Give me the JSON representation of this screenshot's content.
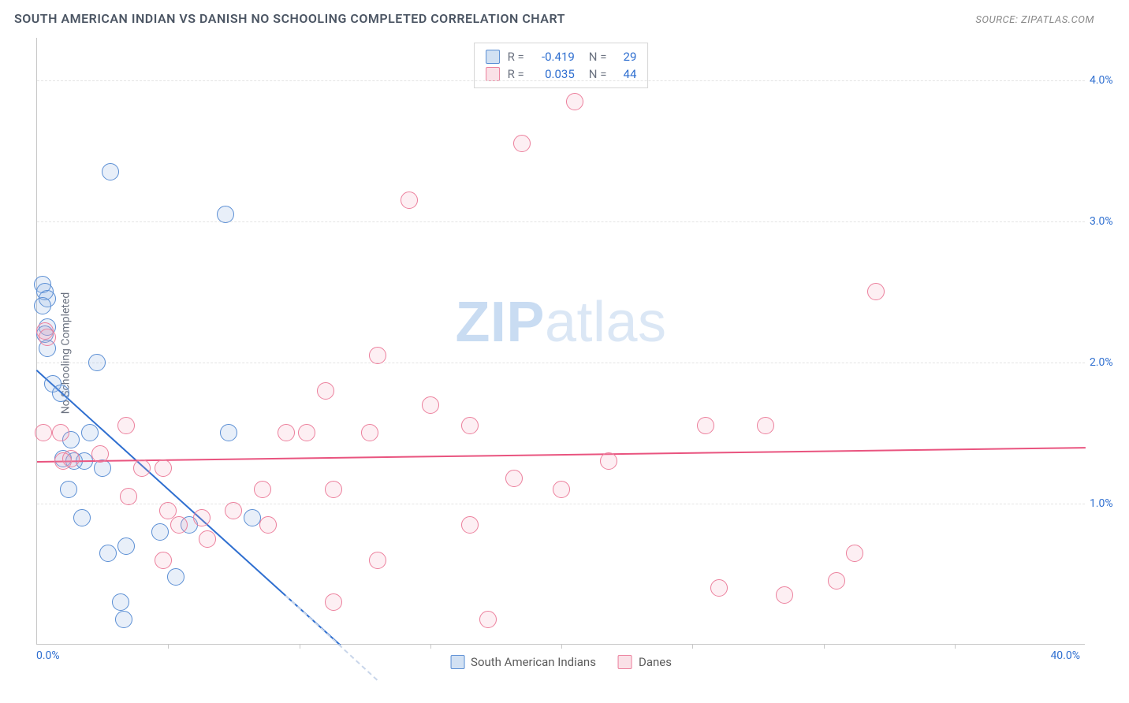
{
  "title": "SOUTH AMERICAN INDIAN VS DANISH NO SCHOOLING COMPLETED CORRELATION CHART",
  "source": "Source: ZipAtlas.com",
  "watermark_zip": "ZIP",
  "watermark_atlas": "atlas",
  "y_axis_title": "No Schooling Completed",
  "chart": {
    "type": "scatter",
    "xlim": [
      0,
      40
    ],
    "ylim": [
      0,
      4.3
    ],
    "x_min_label": "0.0%",
    "x_max_label": "40.0%",
    "y_ticks": [
      {
        "v": 1.0,
        "label": "1.0%"
      },
      {
        "v": 2.0,
        "label": "2.0%"
      },
      {
        "v": 3.0,
        "label": "3.0%"
      },
      {
        "v": 4.0,
        "label": "4.0%"
      }
    ],
    "x_tick_marks": [
      5,
      10,
      15,
      20,
      25,
      30,
      35
    ],
    "grid_color": "#e4e4e4",
    "background_color": "#ffffff",
    "axis_label_color": "#2f6fd0",
    "point_radius": 11,
    "point_border_width": 1.4,
    "point_fill_opacity": 0.18,
    "series": [
      {
        "key": "sai",
        "label": "South American Indians",
        "fill": "#7fa8dd",
        "stroke": "#5a8ed4",
        "R": "-0.419",
        "N": "29",
        "regression": {
          "x1": 0,
          "y1": 1.95,
          "x2": 11.6,
          "y2": 0,
          "style": "solid",
          "color": "#2f6fd0"
        },
        "regression_ext": {
          "x1": 9.5,
          "y1": 0.35,
          "x2": 13.0,
          "y2": -0.25,
          "style": "dashed",
          "color": "#c9d6ea"
        },
        "points": [
          [
            0.2,
            2.55
          ],
          [
            0.3,
            2.5
          ],
          [
            0.4,
            2.45
          ],
          [
            0.2,
            2.4
          ],
          [
            0.4,
            2.25
          ],
          [
            0.3,
            2.2
          ],
          [
            0.4,
            2.1
          ],
          [
            2.3,
            2.0
          ],
          [
            0.6,
            1.85
          ],
          [
            0.9,
            1.78
          ],
          [
            1.3,
            1.45
          ],
          [
            2.0,
            1.5
          ],
          [
            1.0,
            1.32
          ],
          [
            1.4,
            1.3
          ],
          [
            1.8,
            1.3
          ],
          [
            7.3,
            1.5
          ],
          [
            1.2,
            1.1
          ],
          [
            2.5,
            1.25
          ],
          [
            1.7,
            0.9
          ],
          [
            2.7,
            0.65
          ],
          [
            3.4,
            0.7
          ],
          [
            4.7,
            0.8
          ],
          [
            5.3,
            0.48
          ],
          [
            5.8,
            0.85
          ],
          [
            8.2,
            0.9
          ],
          [
            3.2,
            0.3
          ],
          [
            3.3,
            0.18
          ],
          [
            2.8,
            3.35
          ],
          [
            7.2,
            3.05
          ]
        ]
      },
      {
        "key": "danes",
        "label": "Danes",
        "fill": "#f2a8bb",
        "stroke": "#ec7f9c",
        "R": "0.035",
        "N": "44",
        "regression": {
          "x1": 0,
          "y1": 1.3,
          "x2": 40,
          "y2": 1.4,
          "style": "solid",
          "color": "#e9547f"
        },
        "points": [
          [
            0.3,
            2.22
          ],
          [
            0.4,
            2.18
          ],
          [
            0.25,
            1.5
          ],
          [
            0.9,
            1.5
          ],
          [
            1.0,
            1.3
          ],
          [
            1.3,
            1.32
          ],
          [
            2.4,
            1.35
          ],
          [
            3.4,
            1.55
          ],
          [
            3.5,
            1.05
          ],
          [
            4.0,
            1.25
          ],
          [
            4.8,
            1.25
          ],
          [
            5.0,
            0.95
          ],
          [
            4.8,
            0.6
          ],
          [
            5.4,
            0.85
          ],
          [
            6.3,
            0.9
          ],
          [
            6.5,
            0.75
          ],
          [
            7.5,
            0.95
          ],
          [
            8.6,
            1.1
          ],
          [
            8.8,
            0.85
          ],
          [
            9.5,
            1.5
          ],
          [
            10.3,
            1.5
          ],
          [
            11.0,
            1.8
          ],
          [
            11.3,
            1.1
          ],
          [
            11.3,
            0.3
          ],
          [
            12.7,
            1.5
          ],
          [
            13.0,
            2.05
          ],
          [
            13.0,
            0.6
          ],
          [
            15.0,
            1.7
          ],
          [
            16.5,
            1.55
          ],
          [
            16.5,
            0.85
          ],
          [
            17.2,
            0.18
          ],
          [
            18.2,
            1.18
          ],
          [
            18.5,
            3.55
          ],
          [
            20.0,
            1.1
          ],
          [
            20.5,
            3.85
          ],
          [
            21.8,
            1.3
          ],
          [
            25.5,
            1.55
          ],
          [
            26.0,
            0.4
          ],
          [
            27.8,
            1.55
          ],
          [
            28.5,
            0.35
          ],
          [
            31.2,
            0.65
          ],
          [
            32.0,
            2.5
          ],
          [
            30.5,
            0.45
          ],
          [
            14.2,
            3.15
          ]
        ]
      }
    ]
  },
  "stats_labels": {
    "R": "R =",
    "N": "N ="
  },
  "legend_swatch_border": 1
}
